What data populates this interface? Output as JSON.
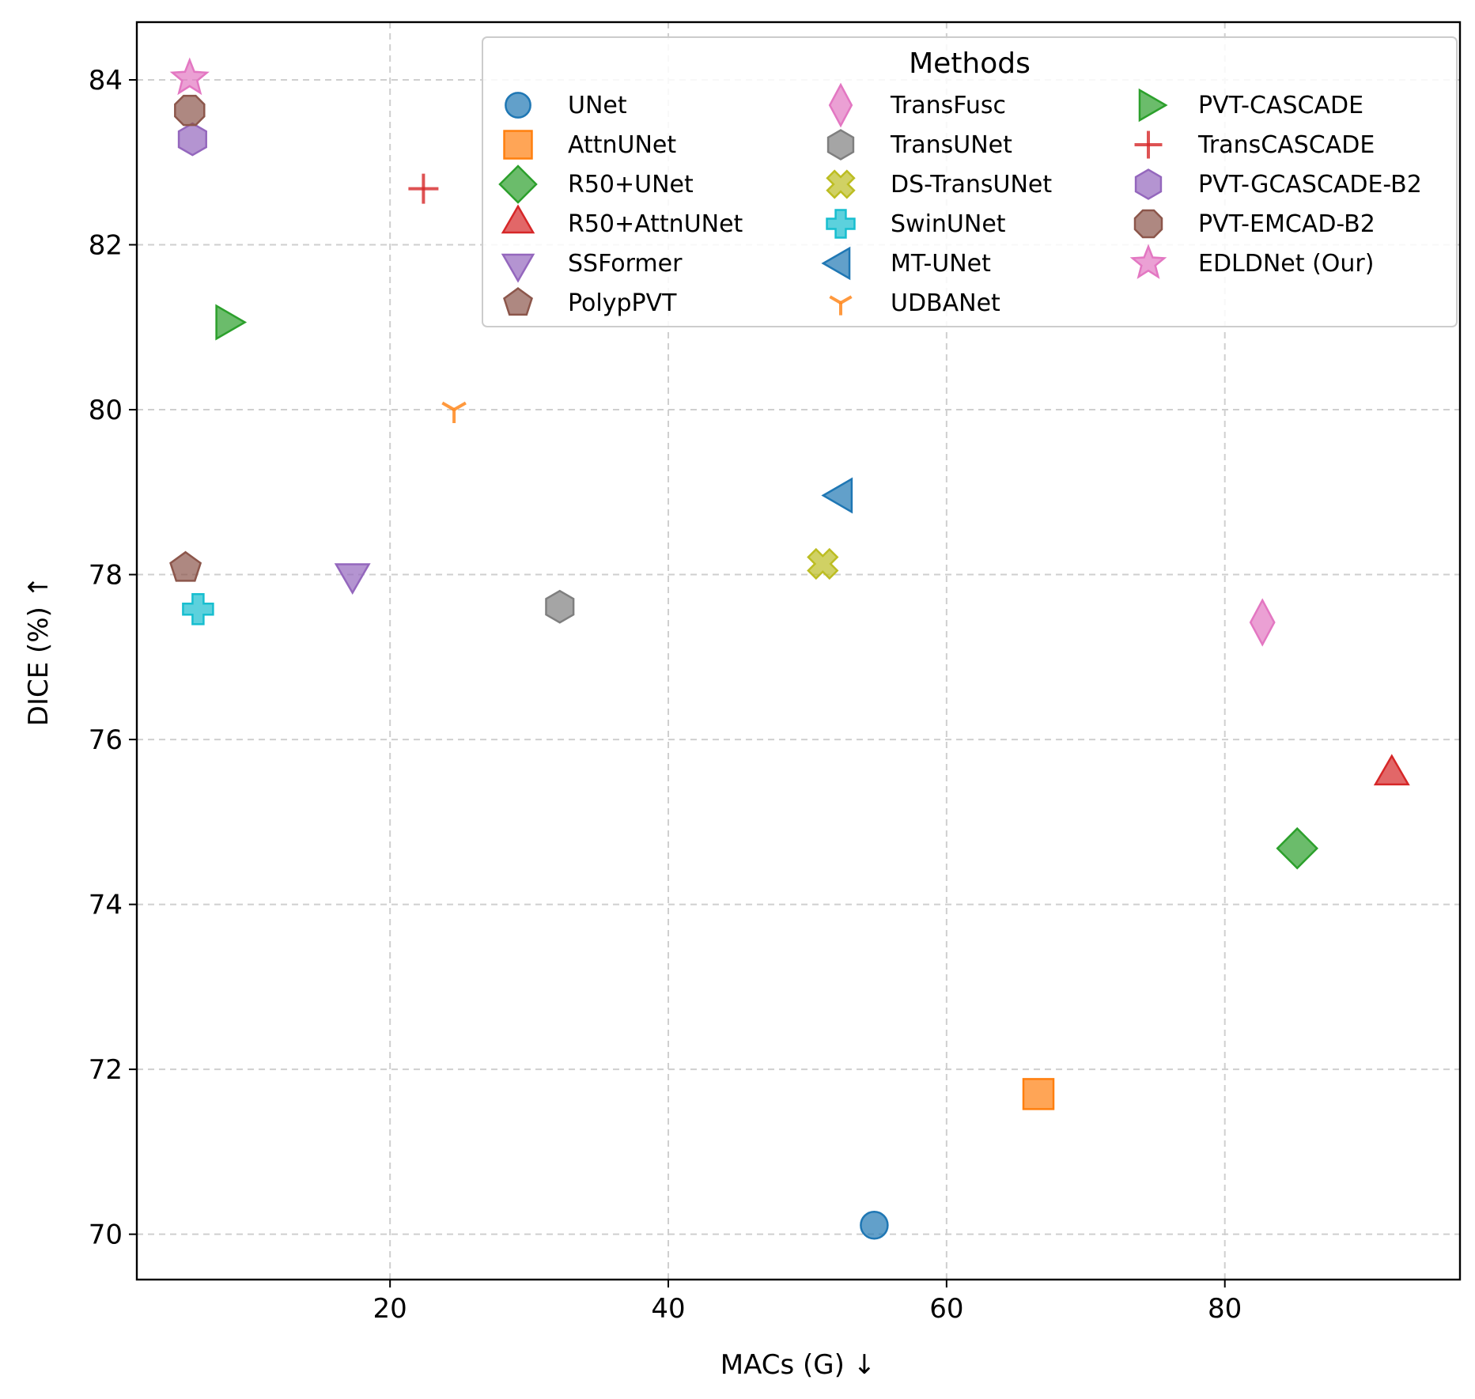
{
  "chart_data": {
    "type": "scatter",
    "xlabel": "MACs (G) ↓",
    "ylabel": "DICE (%) ↑",
    "xlim": [
      1.8,
      96.9
    ],
    "ylim": [
      69.45,
      84.7
    ],
    "xticks": [
      20,
      40,
      60,
      80
    ],
    "yticks": [
      70,
      72,
      74,
      76,
      78,
      80,
      82,
      84
    ],
    "grid": true,
    "legend_title": "Methods",
    "legend_position": "top-right",
    "series": [
      {
        "name": "UNet",
        "x": 54.8,
        "y": 70.11,
        "marker": "circle",
        "color": "#1f77b4"
      },
      {
        "name": "AttnUNet",
        "x": 66.6,
        "y": 71.7,
        "marker": "square",
        "color": "#ff7f0e"
      },
      {
        "name": "R50+UNet",
        "x": 85.2,
        "y": 74.68,
        "marker": "diamond",
        "color": "#2ca02c"
      },
      {
        "name": "R50+AttnUNet",
        "x": 92.0,
        "y": 75.57,
        "marker": "triangle-up",
        "color": "#d62728"
      },
      {
        "name": "SSFormer",
        "x": 17.3,
        "y": 78.01,
        "marker": "triangle-down",
        "color": "#9467bd"
      },
      {
        "name": "PolypPVT",
        "x": 5.3,
        "y": 78.08,
        "marker": "pentagon",
        "color": "#8c564b"
      },
      {
        "name": "TransFusc",
        "x": 82.7,
        "y": 77.42,
        "marker": "thin-diamond",
        "color": "#e377c2"
      },
      {
        "name": "TransUNet",
        "x": 32.2,
        "y": 77.61,
        "marker": "hexagon",
        "color": "#7f7f7f"
      },
      {
        "name": "DS-TransUNet",
        "x": 51.1,
        "y": 78.13,
        "marker": "x-filled",
        "color": "#bcbd22"
      },
      {
        "name": "SwinUNet",
        "x": 6.2,
        "y": 77.58,
        "marker": "plus-filled",
        "color": "#17becf"
      },
      {
        "name": "MT-UNet",
        "x": 52.5,
        "y": 78.96,
        "marker": "triangle-left",
        "color": "#1f77b4"
      },
      {
        "name": "UDBANet",
        "x": 24.6,
        "y": 80.0,
        "marker": "tri-down",
        "color": "#ff7f0e"
      },
      {
        "name": "PVT-CASCADE",
        "x": 8.2,
        "y": 81.06,
        "marker": "triangle-right",
        "color": "#2ca02c"
      },
      {
        "name": "TransCASCADE",
        "x": 22.4,
        "y": 82.68,
        "marker": "plus",
        "color": "#d62728"
      },
      {
        "name": "PVT-GCASCADE-B2",
        "x": 5.8,
        "y": 83.28,
        "marker": "hexagon",
        "color": "#9467bd"
      },
      {
        "name": "PVT-EMCAD-B2",
        "x": 5.6,
        "y": 83.63,
        "marker": "octagon",
        "color": "#8c564b"
      },
      {
        "name": "EDLDNet (Our)",
        "x": 5.6,
        "y": 84.02,
        "marker": "star",
        "color": "#e377c2"
      }
    ]
  }
}
